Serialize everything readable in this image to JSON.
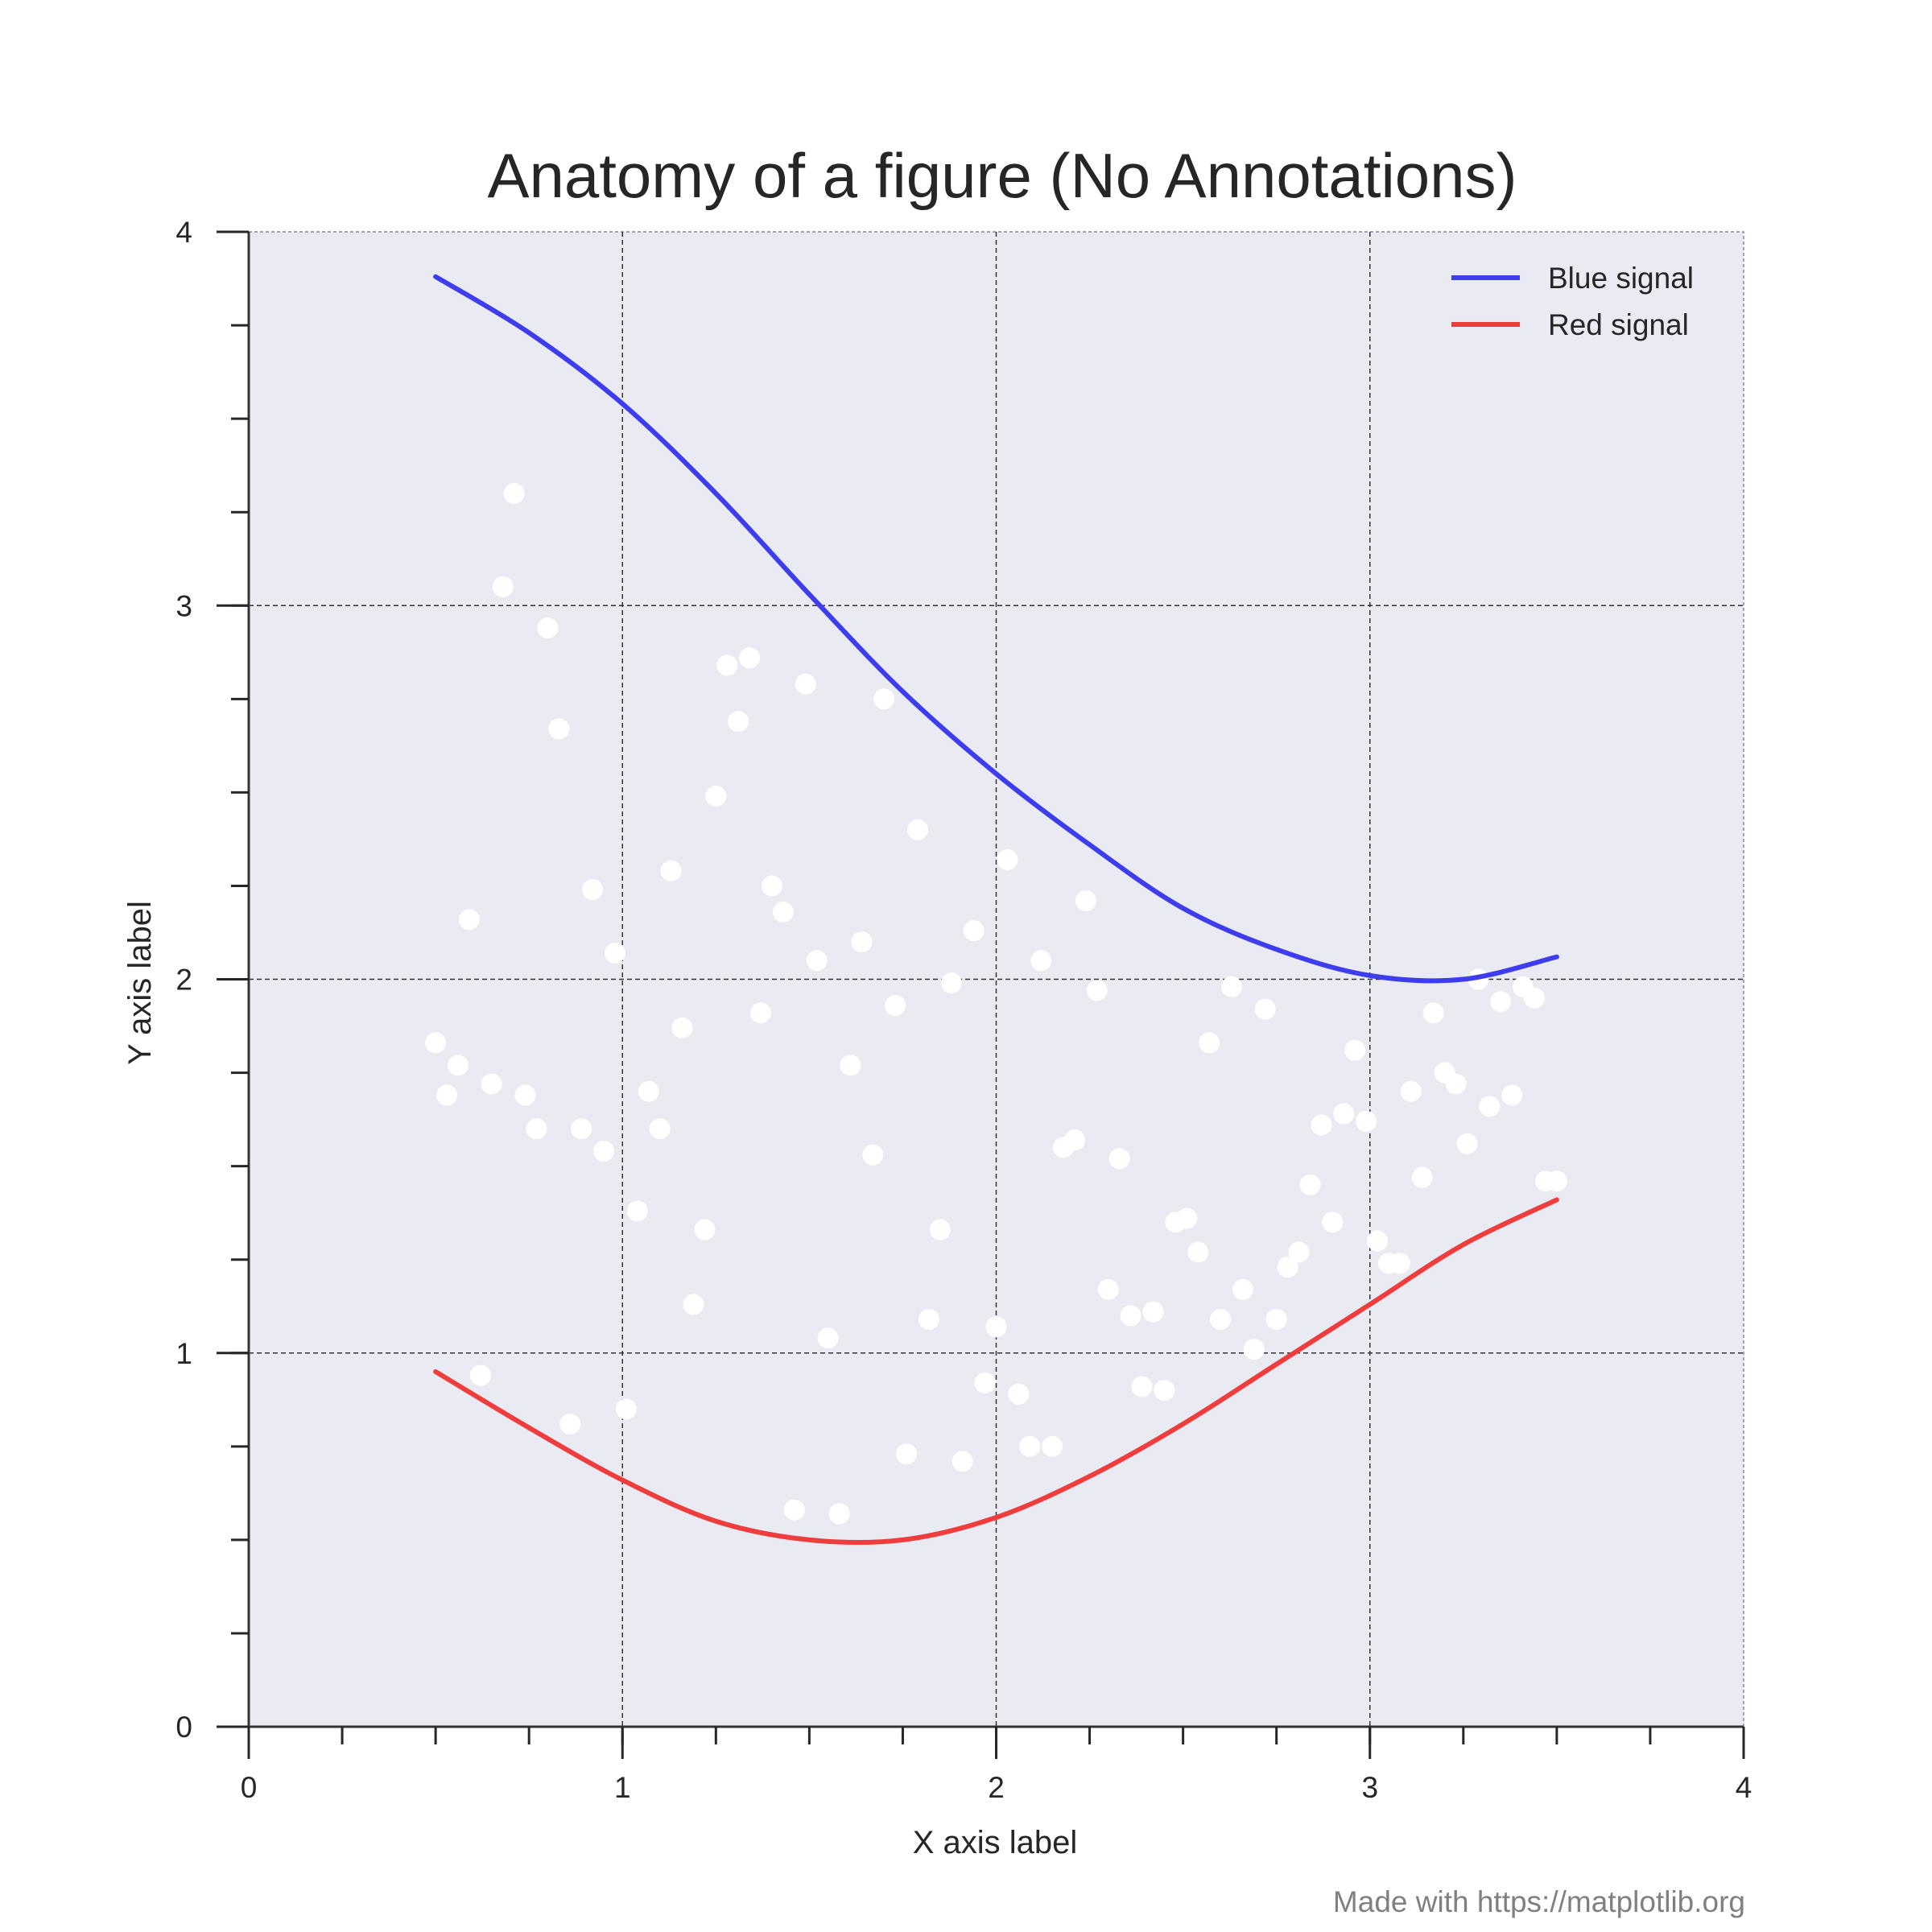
{
  "chart_data": {
    "type": "line",
    "title": "Anatomy of a figure (No Annotations)",
    "xlabel": "X axis label",
    "ylabel": "Y axis label",
    "xlim": [
      0,
      4
    ],
    "ylim": [
      0,
      4
    ],
    "x_ticks": [
      "0",
      "1",
      "2",
      "3",
      "4"
    ],
    "y_ticks": [
      "0",
      "1",
      "2",
      "3",
      "4"
    ],
    "x_minor_step": 0.25,
    "y_minor_step": 0.25,
    "grid": true,
    "legend_position": "top-right",
    "background_color": "#eaeaf2",
    "series": [
      {
        "name": "Blue signal",
        "kind": "line",
        "color": "#3d3dee",
        "x": [
          0.5,
          0.75,
          1.0,
          1.25,
          1.5,
          1.75,
          2.0,
          2.25,
          2.5,
          2.75,
          3.0,
          3.25,
          3.5
        ],
        "y": [
          3.88,
          3.73,
          3.54,
          3.3,
          3.03,
          2.77,
          2.55,
          2.36,
          2.19,
          2.08,
          2.01,
          2.0,
          2.06
        ]
      },
      {
        "name": "Red signal",
        "kind": "line",
        "color": "#ef3d3d",
        "x": [
          0.5,
          0.75,
          1.0,
          1.25,
          1.5,
          1.75,
          2.0,
          2.25,
          2.5,
          2.75,
          3.0,
          3.25,
          3.5
        ],
        "y": [
          0.95,
          0.8,
          0.66,
          0.55,
          0.5,
          0.5,
          0.56,
          0.67,
          0.81,
          0.97,
          1.13,
          1.29,
          1.41
        ]
      },
      {
        "name": "",
        "kind": "scatter",
        "color": "#ffffff",
        "x": [
          0.5,
          0.53,
          0.56,
          0.59,
          0.62,
          0.65,
          0.68,
          0.71,
          0.74,
          0.77,
          0.8,
          0.83,
          0.86,
          0.89,
          0.92,
          0.95,
          0.98,
          1.01,
          1.04,
          1.07,
          1.1,
          1.13,
          1.16,
          1.19,
          1.22,
          1.25,
          1.28,
          1.31,
          1.34,
          1.37,
          1.4,
          1.43,
          1.46,
          1.49,
          1.52,
          1.55,
          1.58,
          1.61,
          1.64,
          1.67,
          1.7,
          1.73,
          1.76,
          1.79,
          1.82,
          1.85,
          1.88,
          1.91,
          1.94,
          1.97,
          2.0,
          2.03,
          2.06,
          2.09,
          2.12,
          2.15,
          2.18,
          2.21,
          2.24,
          2.27,
          2.3,
          2.33,
          2.36,
          2.39,
          2.42,
          2.45,
          2.48,
          2.51,
          2.54,
          2.57,
          2.6,
          2.63,
          2.66,
          2.69,
          2.72,
          2.75,
          2.78,
          2.81,
          2.84,
          2.87,
          2.9,
          2.93,
          2.96,
          2.99,
          3.02,
          3.05,
          3.08,
          3.11,
          3.14,
          3.17,
          3.2,
          3.23,
          3.26,
          3.29,
          3.32,
          3.35,
          3.38,
          3.41,
          3.44,
          3.47,
          3.5
        ],
        "y": [
          1.83,
          1.69,
          1.77,
          2.16,
          0.94,
          1.72,
          3.05,
          3.3,
          1.69,
          1.6,
          2.94,
          2.67,
          0.81,
          1.6,
          2.24,
          1.54,
          2.07,
          0.85,
          1.38,
          1.7,
          1.6,
          2.29,
          1.87,
          1.13,
          1.33,
          2.49,
          2.84,
          2.69,
          2.86,
          1.91,
          2.25,
          2.18,
          0.58,
          2.79,
          2.05,
          1.04,
          0.57,
          1.77,
          2.1,
          1.53,
          2.75,
          1.93,
          0.73,
          2.4,
          1.09,
          1.33,
          1.99,
          0.71,
          2.13,
          0.92,
          1.07,
          2.32,
          0.89,
          0.75,
          2.05,
          0.75,
          1.55,
          1.57,
          2.21,
          1.97,
          1.17,
          1.52,
          1.1,
          0.91,
          1.11,
          0.9,
          1.35,
          1.36,
          1.27,
          1.83,
          1.09,
          1.98,
          1.17,
          1.01,
          1.92,
          1.09,
          1.23,
          1.27,
          1.45,
          1.61,
          1.35,
          1.64,
          1.81,
          1.62,
          1.3,
          1.24,
          1.24,
          1.7,
          1.47,
          1.91,
          1.75,
          1.72,
          1.56,
          2.0,
          1.66,
          1.94,
          1.69,
          1.98,
          1.95,
          1.46,
          1.46
        ]
      }
    ]
  },
  "credit": "Made with https://matplotlib.org"
}
